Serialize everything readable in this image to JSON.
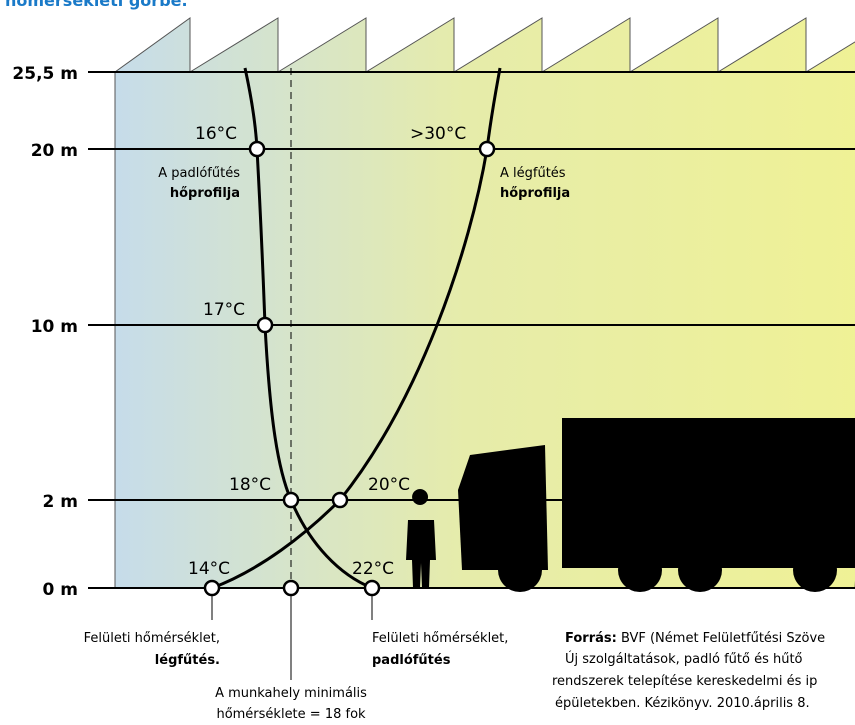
{
  "title": "hőmérsékleti görbe.",
  "levels": [
    "25,5 m",
    "20 m",
    "10 m",
    "2 m",
    "0 m"
  ],
  "points": [
    ">30°C",
    "16°C",
    "17°C",
    "18°C",
    "20°C",
    "14°C",
    "22°C"
  ],
  "annotations": {
    "floor_profile": [
      "A padlófűtés",
      "hőprofilja"
    ],
    "air_profile": [
      "A légfűtés",
      "hőprofilja"
    ],
    "surface_air": [
      "Felületi hőmérséklet,",
      "légfűtés."
    ],
    "surface_floor": [
      "Felületi hőmérséklet,",
      "padlófűtés"
    ],
    "minimum": [
      "A munkahely minimális",
      "hőmérséklete = 18 fok"
    ]
  },
  "source": {
    "label": "Forrás:",
    "lines": [
      "BVF (Német Felületfűtési Szöve",
      "Új szolgáltatások, padló fűtő és hűtő",
      "rendszerek telepítése kereskedelmi és ip",
      "épületekben. Kézikönyv. 2010.április 8."
    ]
  }
}
